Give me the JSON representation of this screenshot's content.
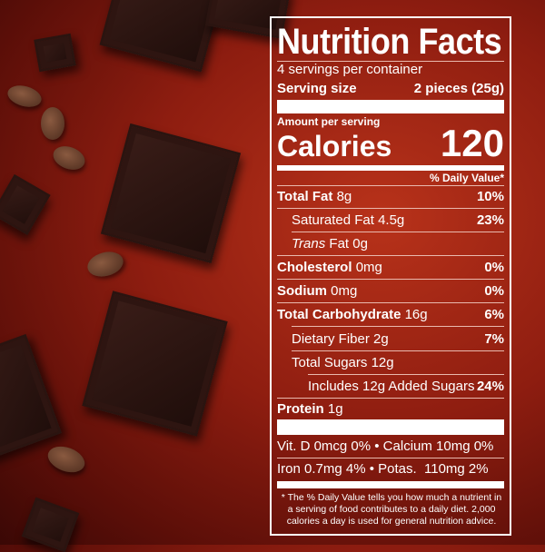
{
  "label": {
    "title": "Nutrition Facts",
    "servings_per_container": "4 servings per container",
    "serving_size_label": "Serving size",
    "serving_size_value": "2 pieces (25g)",
    "amount_per_serving": "Amount per serving",
    "calories_label": "Calories",
    "calories_value": "120",
    "daily_value_header": "% Daily Value*",
    "nutrients": [
      {
        "name": "Total Fat",
        "amount": "8g",
        "dv": "10%"
      },
      {
        "name": "Saturated Fat",
        "amount": "4.5g",
        "dv": "23%"
      },
      {
        "name": "Trans",
        "name_suffix": "Fat 0g",
        "dv": ""
      },
      {
        "name": "Cholesterol",
        "amount": "0mg",
        "dv": "0%"
      },
      {
        "name": "Sodium",
        "amount": "0mg",
        "dv": "0%"
      },
      {
        "name": "Total Carbohydrate",
        "amount": "16g",
        "dv": "6%"
      },
      {
        "name": "Dietary Fiber",
        "amount": "2g",
        "dv": "7%"
      },
      {
        "name": "Total Sugars",
        "amount": "12g",
        "dv": ""
      },
      {
        "name": "Includes 12g Added Sugars",
        "amount": "",
        "dv": "24%"
      },
      {
        "name": "Protein",
        "amount": "1g",
        "dv": ""
      }
    ],
    "vitamins_row1": "Vit. D 0mcg 0% • Calcium 10mg 0%",
    "vitamins_row2": "Iron 0.7mg 4% • Potas.  110mg 2%",
    "footnote": "* The % Daily Value tells you how much a nutrient in a serving of food contributes to a daily diet. 2,000 calories a day is used for general nutrition advice."
  }
}
